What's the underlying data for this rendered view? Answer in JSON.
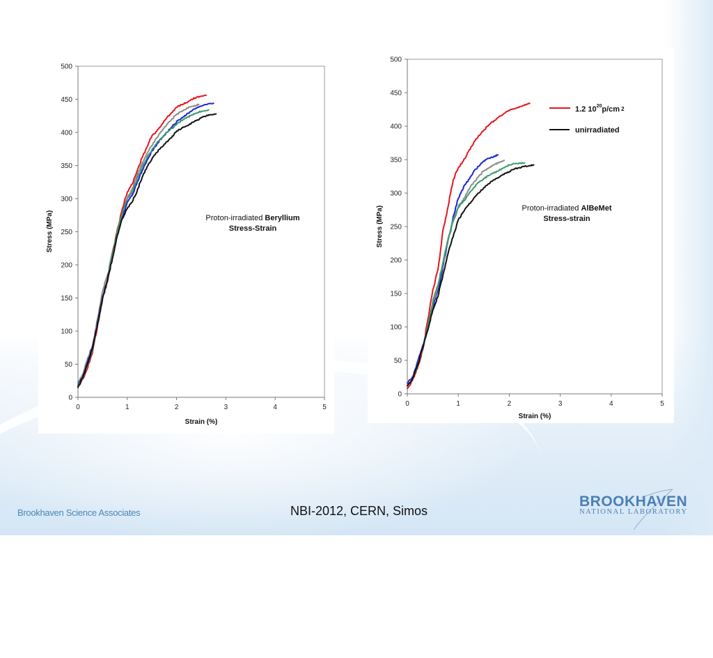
{
  "footer": {
    "left_text": "Brookhaven Science Associates",
    "center_text": "NBI-2012, CERN, Simos",
    "logo_top": "BROOKHAVEN",
    "logo_bottom": "NATIONAL LABORATORY"
  },
  "colors": {
    "red": "#e8141b",
    "gray": "#8c8c8c",
    "blue": "#1a24d8",
    "green": "#3a9a6a",
    "black": "#111111",
    "logo_blue": "#4a7fb5"
  },
  "chart_data": [
    {
      "type": "line",
      "id": "beryllium",
      "title": "",
      "annotation_normal": "Proton-irradiated ",
      "annotation_bold": "Beryllium",
      "annotation_line2": "Stress-Strain",
      "xlabel": "Strain (%)",
      "ylabel": "Stress (MPa)",
      "xlim": [
        0,
        5
      ],
      "ylim": [
        0,
        500
      ],
      "xticks": [
        "0",
        "1",
        "2",
        "3",
        "4",
        "5"
      ],
      "yticks": [
        "0",
        "50",
        "100",
        "150",
        "200",
        "250",
        "300",
        "350",
        "400",
        "450",
        "500"
      ],
      "grid": false,
      "legend": [],
      "series": [
        {
          "name": "gray",
          "color": "#8c8c8c",
          "x": [
            0,
            0.1,
            0.2,
            0.3,
            0.4,
            0.5,
            0.6,
            0.7,
            0.8,
            0.9,
            1.0,
            1.1,
            1.2,
            1.3,
            1.4,
            1.5,
            1.6,
            1.7,
            1.8,
            1.9,
            2.0,
            2.1,
            2.2,
            2.3,
            2.4,
            2.45
          ],
          "y": [
            22,
            35,
            60,
            80,
            120,
            160,
            185,
            220,
            255,
            280,
            300,
            315,
            335,
            352,
            368,
            380,
            392,
            402,
            412,
            420,
            427,
            432,
            436,
            439,
            441,
            442
          ]
        },
        {
          "name": "red",
          "color": "#e8141b",
          "x": [
            0,
            0.1,
            0.2,
            0.3,
            0.4,
            0.5,
            0.6,
            0.7,
            0.8,
            0.9,
            1.0,
            1.1,
            1.2,
            1.3,
            1.4,
            1.5,
            1.6,
            1.7,
            1.8,
            1.9,
            2.0,
            2.1,
            2.2,
            2.3,
            2.4,
            2.5,
            2.6
          ],
          "y": [
            15,
            28,
            45,
            70,
            110,
            150,
            175,
            215,
            252,
            285,
            310,
            322,
            342,
            362,
            378,
            395,
            402,
            412,
            422,
            430,
            438,
            442,
            445,
            450,
            453,
            455,
            456
          ]
        },
        {
          "name": "blue",
          "color": "#1a24d8",
          "x": [
            0,
            0.1,
            0.2,
            0.3,
            0.4,
            0.5,
            0.6,
            0.7,
            0.8,
            0.9,
            1.0,
            1.1,
            1.2,
            1.3,
            1.4,
            1.5,
            1.6,
            1.7,
            1.8,
            1.9,
            2.0,
            2.1,
            2.2,
            2.3,
            2.4,
            2.5,
            2.6,
            2.75
          ],
          "y": [
            18,
            32,
            55,
            78,
            115,
            152,
            178,
            212,
            245,
            272,
            295,
            305,
            325,
            342,
            358,
            372,
            382,
            392,
            400,
            408,
            416,
            422,
            427,
            432,
            437,
            440,
            442,
            444
          ]
        },
        {
          "name": "green",
          "color": "#3a9a6a",
          "x": [
            0,
            0.1,
            0.2,
            0.3,
            0.4,
            0.5,
            0.6,
            0.7,
            0.8,
            0.9,
            1.0,
            1.1,
            1.2,
            1.3,
            1.4,
            1.5,
            1.6,
            1.7,
            1.8,
            1.9,
            2.0,
            2.1,
            2.2,
            2.3,
            2.4,
            2.5,
            2.65
          ],
          "y": [
            17,
            30,
            50,
            72,
            112,
            150,
            178,
            215,
            250,
            278,
            300,
            310,
            330,
            348,
            362,
            374,
            384,
            392,
            400,
            406,
            412,
            418,
            422,
            426,
            429,
            432,
            434
          ]
        },
        {
          "name": "black",
          "color": "#111111",
          "x": [
            0,
            0.1,
            0.2,
            0.3,
            0.4,
            0.5,
            0.6,
            0.7,
            0.8,
            0.9,
            1.0,
            1.1,
            1.2,
            1.3,
            1.4,
            1.5,
            1.6,
            1.7,
            1.8,
            1.9,
            2.0,
            2.1,
            2.2,
            2.3,
            2.4,
            2.5,
            2.6,
            2.7,
            2.8
          ],
          "y": [
            15,
            30,
            52,
            75,
            112,
            150,
            178,
            210,
            245,
            270,
            285,
            295,
            312,
            332,
            348,
            360,
            370,
            378,
            386,
            392,
            402,
            406,
            410,
            414,
            418,
            422,
            425,
            427,
            428
          ]
        }
      ]
    },
    {
      "type": "line",
      "id": "albemet",
      "title": "",
      "annotation_normal": "Proton-irradiated ",
      "annotation_bold": "AlBeMet",
      "annotation_line2": "Stress-strain",
      "xlabel": "Strain (%)",
      "ylabel": "Stress (MPa)",
      "xlim": [
        0,
        5
      ],
      "ylim": [
        0,
        500
      ],
      "xticks": [
        "0",
        "1",
        "2",
        "3",
        "4",
        "5"
      ],
      "yticks": [
        "0",
        "50",
        "100",
        "150",
        "200",
        "250",
        "300",
        "350",
        "400",
        "450",
        "500"
      ],
      "grid": false,
      "legend_position": "top-right",
      "legend": [
        {
          "label": "1.2 10",
          "superscript": "20",
          "label_suffix": "p/cm",
          "suffix_superscript": "2",
          "color": "#e8141b"
        },
        {
          "label": "unirradiated",
          "superscript": "",
          "label_suffix": "",
          "suffix_superscript": "",
          "color": "#111111"
        }
      ],
      "series": [
        {
          "name": "red",
          "color": "#e8141b",
          "x": [
            0,
            0.1,
            0.2,
            0.3,
            0.4,
            0.5,
            0.6,
            0.7,
            0.8,
            0.9,
            1.0,
            1.1,
            1.2,
            1.3,
            1.4,
            1.5,
            1.6,
            1.7,
            1.8,
            1.9,
            2.0,
            2.1,
            2.2,
            2.3,
            2.4
          ],
          "y": [
            8,
            20,
            38,
            65,
            110,
            155,
            185,
            245,
            280,
            320,
            338,
            348,
            362,
            375,
            386,
            394,
            402,
            408,
            414,
            419,
            423,
            426,
            429,
            432,
            434
          ]
        },
        {
          "name": "blue",
          "color": "#1a24d8",
          "x": [
            0,
            0.1,
            0.2,
            0.3,
            0.4,
            0.5,
            0.6,
            0.7,
            0.8,
            0.9,
            1.0,
            1.1,
            1.2,
            1.3,
            1.4,
            1.5,
            1.6,
            1.7,
            1.78
          ],
          "y": [
            16,
            25,
            48,
            72,
            95,
            130,
            155,
            190,
            230,
            265,
            292,
            308,
            320,
            332,
            340,
            348,
            352,
            355,
            357
          ]
        },
        {
          "name": "gray",
          "color": "#8c8c8c",
          "x": [
            0,
            0.1,
            0.2,
            0.3,
            0.4,
            0.5,
            0.6,
            0.7,
            0.8,
            0.9,
            1.0,
            1.1,
            1.2,
            1.3,
            1.4,
            1.5,
            1.6,
            1.7,
            1.8,
            1.9
          ],
          "y": [
            12,
            22,
            42,
            68,
            98,
            135,
            160,
            195,
            232,
            260,
            280,
            290,
            305,
            316,
            325,
            333,
            338,
            342,
            346,
            349
          ]
        },
        {
          "name": "green",
          "color": "#3a9a6a",
          "x": [
            0,
            0.1,
            0.2,
            0.3,
            0.4,
            0.5,
            0.6,
            0.7,
            0.8,
            0.9,
            1.0,
            1.1,
            1.2,
            1.3,
            1.4,
            1.5,
            1.6,
            1.7,
            1.8,
            1.9,
            2.0,
            2.1,
            2.2,
            2.3
          ],
          "y": [
            12,
            22,
            40,
            68,
            100,
            138,
            162,
            196,
            230,
            258,
            278,
            288,
            298,
            308,
            316,
            322,
            326,
            330,
            334,
            338,
            342,
            344,
            345,
            345
          ]
        },
        {
          "name": "black",
          "color": "#111111",
          "x": [
            0,
            0.1,
            0.2,
            0.3,
            0.4,
            0.5,
            0.6,
            0.7,
            0.8,
            0.9,
            1.0,
            1.1,
            1.2,
            1.3,
            1.4,
            1.5,
            1.6,
            1.7,
            1.8,
            1.9,
            2.0,
            2.1,
            2.2,
            2.3,
            2.4,
            2.48
          ],
          "y": [
            12,
            22,
            42,
            68,
            95,
            125,
            145,
            178,
            210,
            235,
            260,
            272,
            282,
            292,
            300,
            308,
            314,
            320,
            324,
            328,
            332,
            336,
            338,
            340,
            341,
            342
          ]
        }
      ]
    }
  ]
}
